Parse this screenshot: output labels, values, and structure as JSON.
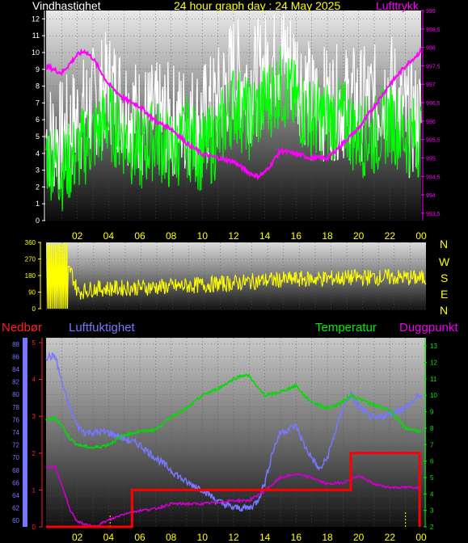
{
  "header": {
    "left_title": "Vindhastighet",
    "center_title": "24 hour graph day : 24 May 2025",
    "right_title": "Lufttrykk"
  },
  "colors": {
    "background": "#000000",
    "wind_gust": "#ffffff",
    "wind_speed": "#00ff00",
    "pressure": "#ff00ff",
    "direction": "#ffff00",
    "humidity": "#7777ff",
    "temperature": "#00dd00",
    "dewpoint": "#cc00cc",
    "rain": "#ff0000",
    "time_labels": "#ffff00"
  },
  "compass": [
    "N",
    "W",
    "S",
    "E",
    "N"
  ],
  "bottom_header": {
    "rain_label": "Nedbør",
    "humidity_label": "Luftfuktighet",
    "temperature_label": "Temperatur",
    "dewpoint_label": "Duggpunkt"
  },
  "chart_data": [
    {
      "type": "line",
      "name": "wind_and_pressure",
      "x_ticks": [
        "02",
        "04",
        "06",
        "08",
        "10",
        "12",
        "14",
        "16",
        "18",
        "20",
        "22",
        "00"
      ],
      "y_left_ticks": [
        "0",
        "1",
        "2",
        "3",
        "4",
        "5",
        "6",
        "7",
        "8",
        "9",
        "10",
        "11",
        "12"
      ],
      "y_left_lim": [
        0,
        12.5
      ],
      "y_right_ticks": [
        "993,5",
        "994",
        "994,5",
        "995",
        "995,5",
        "996",
        "996,5",
        "997",
        "997,5",
        "998",
        "998,5",
        "999"
      ],
      "y_right_lim": [
        993.3,
        999
      ],
      "x_lim": [
        0,
        24
      ],
      "series": [
        {
          "axis": "right",
          "x": [
            0,
            1,
            2,
            2.5,
            3,
            4,
            5,
            6,
            7,
            8,
            9,
            10,
            11,
            12,
            13,
            13.5,
            14,
            15,
            16,
            17,
            18,
            19,
            20,
            21,
            22,
            23,
            24
          ],
          "values": [
            997.5,
            997.3,
            997.8,
            997.9,
            997.7,
            997.0,
            996.6,
            996.4,
            996.0,
            995.8,
            995.4,
            995.1,
            995.0,
            994.9,
            994.6,
            994.5,
            994.6,
            995.2,
            995.1,
            995.0,
            995.0,
            995.4,
            995.8,
            996.4,
            997.0,
            997.5,
            997.9
          ]
        },
        {
          "axis": "left",
          "x": [
            0,
            1,
            2,
            3,
            4,
            5,
            6,
            7,
            8,
            9,
            10,
            11,
            12,
            13,
            14,
            15,
            16,
            17,
            18,
            19,
            20,
            21,
            22,
            23,
            24
          ],
          "values": [
            4,
            3,
            4,
            5,
            6,
            5,
            4,
            5,
            4,
            5,
            4,
            5,
            7,
            6,
            7,
            8,
            7,
            6,
            6,
            6,
            5,
            5,
            6,
            5,
            5
          ]
        },
        {
          "axis": "left",
          "x": [
            0,
            1,
            2,
            3,
            4,
            5,
            6,
            7,
            8,
            9,
            10,
            11,
            12,
            13,
            14,
            15,
            16,
            17,
            18,
            19,
            20,
            21,
            22,
            23,
            24
          ],
          "values": [
            5,
            5,
            6,
            7,
            8,
            7,
            6,
            6,
            6,
            6,
            6,
            7,
            9,
            8,
            9,
            10,
            9,
            7,
            7,
            7,
            7,
            7,
            8,
            6,
            6
          ]
        }
      ]
    },
    {
      "type": "line",
      "name": "wind_direction",
      "x_ticks": [
        "02",
        "04",
        "06",
        "08",
        "10",
        "12",
        "14",
        "16",
        "18",
        "20",
        "22",
        "00"
      ],
      "y_ticks": [
        "0",
        "90",
        "180",
        "270",
        "360"
      ],
      "y_lim": [
        0,
        360
      ],
      "x_lim": [
        0,
        24
      ],
      "series": [
        {
          "x": [
            0,
            1,
            2,
            3,
            4,
            6,
            8,
            10,
            12,
            14,
            16,
            18,
            20,
            22,
            24
          ],
          "values": [
            300,
            350,
            90,
            110,
            110,
            115,
            120,
            130,
            140,
            155,
            160,
            165,
            170,
            170,
            165
          ]
        }
      ]
    },
    {
      "type": "line",
      "name": "humidity_temperature",
      "x_ticks": [
        "02",
        "04",
        "06",
        "08",
        "10",
        "12",
        "14",
        "16",
        "18",
        "20",
        "22",
        "00"
      ],
      "y_humidity_ticks": [
        "60",
        "62",
        "64",
        "66",
        "68",
        "70",
        "72",
        "74",
        "76",
        "78",
        "80",
        "82",
        "84",
        "86",
        "88"
      ],
      "y_humidity_lim": [
        59,
        89
      ],
      "y_rain_ticks": [
        "0",
        "1",
        "2",
        "3",
        "4",
        "5"
      ],
      "y_rain_lim": [
        0,
        5
      ],
      "y_temp_ticks": [
        "2",
        "3",
        "4",
        "5",
        "6",
        "7",
        "8",
        "9",
        "10",
        "11",
        "12",
        "13"
      ],
      "y_temp_lim": [
        2,
        13.5
      ],
      "x_lim": [
        0,
        24
      ],
      "series": [
        {
          "axis": "humidity",
          "x": [
            0,
            0.6,
            1,
            1.5,
            2,
            2.5,
            3,
            4,
            5,
            6,
            7,
            8,
            9,
            10,
            11,
            12,
            13,
            13.5,
            14,
            14.5,
            15,
            16,
            16.5,
            17,
            17.5,
            18,
            18.5,
            19,
            19.5,
            20,
            20.5,
            21,
            22,
            23,
            24
          ],
          "values": [
            86,
            86,
            82,
            78,
            75,
            74,
            74,
            74,
            73,
            72,
            70,
            68,
            66,
            65,
            63,
            62,
            62,
            63,
            66,
            71,
            74,
            75,
            72,
            70,
            68,
            70,
            74,
            78,
            80,
            78,
            77,
            76,
            77,
            78,
            80
          ]
        },
        {
          "axis": "temp",
          "x": [
            0,
            0.6,
            1,
            1.5,
            2,
            3,
            4,
            5,
            6,
            7,
            8,
            9,
            10,
            11,
            12,
            12.5,
            13,
            13.5,
            14,
            15,
            16,
            16.5,
            17,
            18,
            19,
            19.5,
            20,
            21,
            22,
            23,
            24
          ],
          "values": [
            8.5,
            8.6,
            8.2,
            7.4,
            7.0,
            6.8,
            7.0,
            7.6,
            7.8,
            7.9,
            8.7,
            9.2,
            10.0,
            10.4,
            11.0,
            11.2,
            11.2,
            10.5,
            10.0,
            10.2,
            10.6,
            10.0,
            9.6,
            9.2,
            9.6,
            10.0,
            9.8,
            9.4,
            9.1,
            8.0,
            7.8
          ]
        },
        {
          "axis": "temp",
          "x": [
            0,
            0.6,
            1,
            1.5,
            2,
            3,
            4,
            5,
            6,
            7,
            8,
            9,
            10,
            11,
            12,
            13,
            14,
            15,
            16,
            17,
            18,
            19,
            20,
            21,
            22,
            23,
            24
          ],
          "values": [
            5.6,
            5.6,
            4.6,
            3.1,
            2.3,
            2.0,
            2.4,
            2.8,
            3.0,
            3.1,
            3.4,
            3.4,
            3.4,
            3.5,
            3.6,
            3.6,
            4.2,
            5.0,
            5.2,
            5.0,
            4.6,
            4.7,
            5.1,
            4.6,
            4.4,
            4.4,
            4.4
          ]
        },
        {
          "axis": "rain",
          "x": [
            0,
            5.5,
            5.5,
            19.5,
            19.5,
            23.9,
            23.9
          ],
          "values": [
            0,
            0,
            1.0,
            1.0,
            2.0,
            2.0,
            0
          ]
        }
      ]
    }
  ]
}
